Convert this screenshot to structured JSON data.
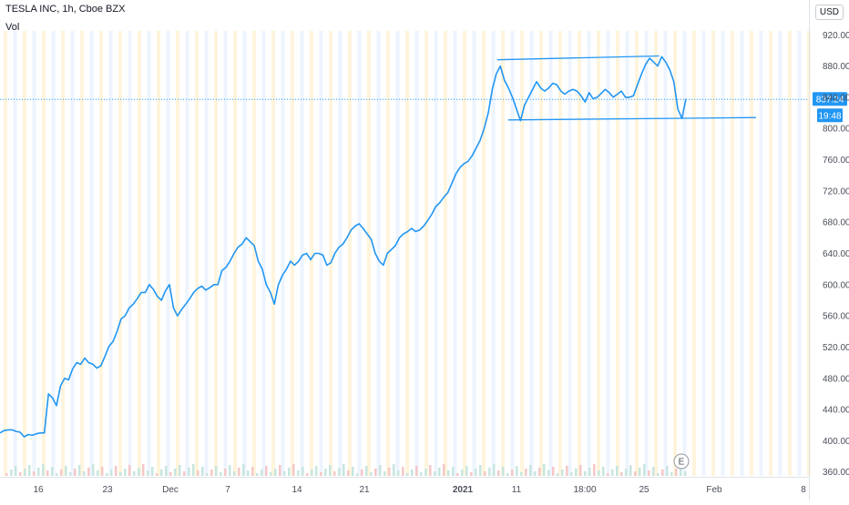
{
  "header": {
    "title": "TESLA INC, 1h, Cboe BZX",
    "volume_label": "Vol",
    "currency": "USD"
  },
  "colors": {
    "line": "#2196f3",
    "price_label_bg": "#2196f3",
    "session_band": "#fff4dc",
    "overnight_band": "#eef4ff",
    "axis_text": "#4a4e59"
  },
  "price_label": "837.24",
  "time_label": "19:48",
  "event_badge": "E",
  "chart_data": {
    "type": "line",
    "title": "",
    "xlabel": "",
    "ylabel": "",
    "y_ticks": [
      360,
      400,
      440,
      480,
      520,
      560,
      600,
      640,
      680,
      720,
      760,
      800,
      840,
      880,
      920
    ],
    "y_tick_labels": [
      "360.00",
      "400.00",
      "440.00",
      "480.00",
      "520.00",
      "560.00",
      "600.00",
      "640.00",
      "680.00",
      "720.00",
      "760.00",
      "800.00",
      "840.00",
      "880.00",
      "920.00"
    ],
    "ylim": [
      355,
      925
    ],
    "x_ticks": [
      "16",
      "23",
      "Dec",
      "7",
      "14",
      "21",
      "2021",
      "11",
      "18:00",
      "25",
      "Feb",
      "8"
    ],
    "x_tick_bold": [
      "2021"
    ],
    "last_value": 837.24,
    "series": [
      {
        "values": [
          410,
          413,
          414,
          414,
          412,
          411,
          405,
          408,
          407,
          409,
          410,
          410,
          460,
          455,
          445,
          470,
          480,
          478,
          492,
          500,
          498,
          506,
          500,
          498,
          493,
          496,
          508,
          521,
          527,
          540,
          556,
          560,
          570,
          575,
          582,
          590,
          590,
          600,
          594,
          585,
          580,
          592,
          600,
          570,
          560,
          568,
          575,
          582,
          590,
          595,
          598,
          593,
          596,
          600,
          600,
          618,
          622,
          630,
          640,
          648,
          652,
          660,
          655,
          650,
          630,
          620,
          600,
          590,
          575,
          600,
          612,
          620,
          630,
          625,
          630,
          638,
          640,
          632,
          640,
          640,
          638,
          625,
          628,
          640,
          648,
          652,
          660,
          670,
          675,
          678,
          672,
          665,
          658,
          640,
          630,
          625,
          640,
          645,
          650,
          660,
          665,
          668,
          672,
          668,
          670,
          675,
          682,
          690,
          700,
          705,
          712,
          718,
          730,
          742,
          750,
          755,
          758,
          765,
          775,
          785,
          800,
          820,
          850,
          870,
          880,
          862,
          852,
          840,
          825,
          810,
          830,
          840,
          850,
          860,
          852,
          848,
          852,
          858,
          856,
          848,
          844,
          848,
          850,
          848,
          842,
          834,
          846,
          838,
          840,
          845,
          850,
          846,
          840,
          844,
          848,
          840,
          840,
          842,
          856,
          870,
          882,
          890,
          885,
          880,
          892,
          885,
          875,
          860,
          825,
          813,
          838
        ]
      }
    ],
    "annotations": [
      {
        "type": "trendline",
        "from": [
          0.725,
          888
        ],
        "to": [
          0.961,
          893
        ]
      },
      {
        "type": "trendline",
        "from": [
          0.741,
          811
        ],
        "to": [
          1.0,
          814
        ]
      }
    ]
  }
}
